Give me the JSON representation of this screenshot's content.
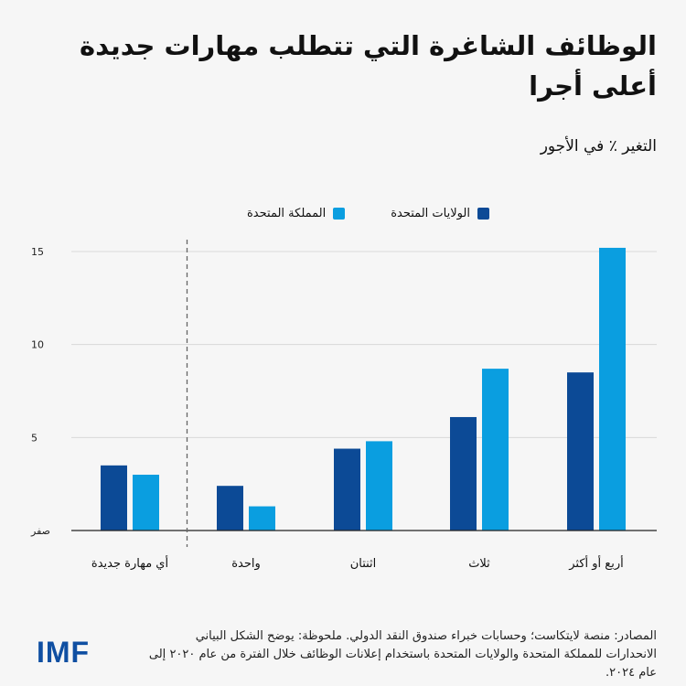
{
  "title": "الوظائف الشاغرة التي تتطلب مهارات جديدة أعلى أجرا",
  "subtitle": "التغير ٪ في الأجور",
  "legend": {
    "us": "الولايات المتحدة",
    "uk": "المملكة المتحدة"
  },
  "colors": {
    "us": "#0c4a96",
    "uk": "#0a9ee0",
    "grid": "#d9d9d9",
    "axis": "#222222",
    "divider": "#666666"
  },
  "chart_data": {
    "type": "bar",
    "categories": [
      "أي مهارة جديدة",
      "واحدة",
      "اثنتان",
      "ثلاث",
      "أربع أو أكثر"
    ],
    "series": [
      {
        "name": "الولايات المتحدة",
        "key": "us",
        "values": [
          3.5,
          2.4,
          4.4,
          6.1,
          8.5
        ]
      },
      {
        "name": "المملكة المتحدة",
        "key": "uk",
        "values": [
          3.0,
          1.3,
          4.8,
          8.7,
          15.2
        ]
      }
    ],
    "ylim": [
      0,
      15
    ],
    "yticks": [
      {
        "value": 0,
        "label": "صفر"
      },
      {
        "value": 5,
        "label": "5"
      },
      {
        "value": 10,
        "label": "10"
      },
      {
        "value": 15,
        "label": "15"
      }
    ],
    "divider_after_category": 0,
    "xlabel": "",
    "ylabel": "التغير ٪ في الأجور"
  },
  "footer": {
    "note": "المصادر: منصة لايتكاست؛ وحسابات خبراء صندوق النقد الدولي. ملحوظة: يوضح الشكل البياني الانحدارات للمملكة المتحدة والولايات المتحدة باستخدام إعلانات الوظائف خلال الفترة من عام ٢٠٢٠ إلى عام ٢٠٢٤.",
    "logo": "IMF"
  }
}
